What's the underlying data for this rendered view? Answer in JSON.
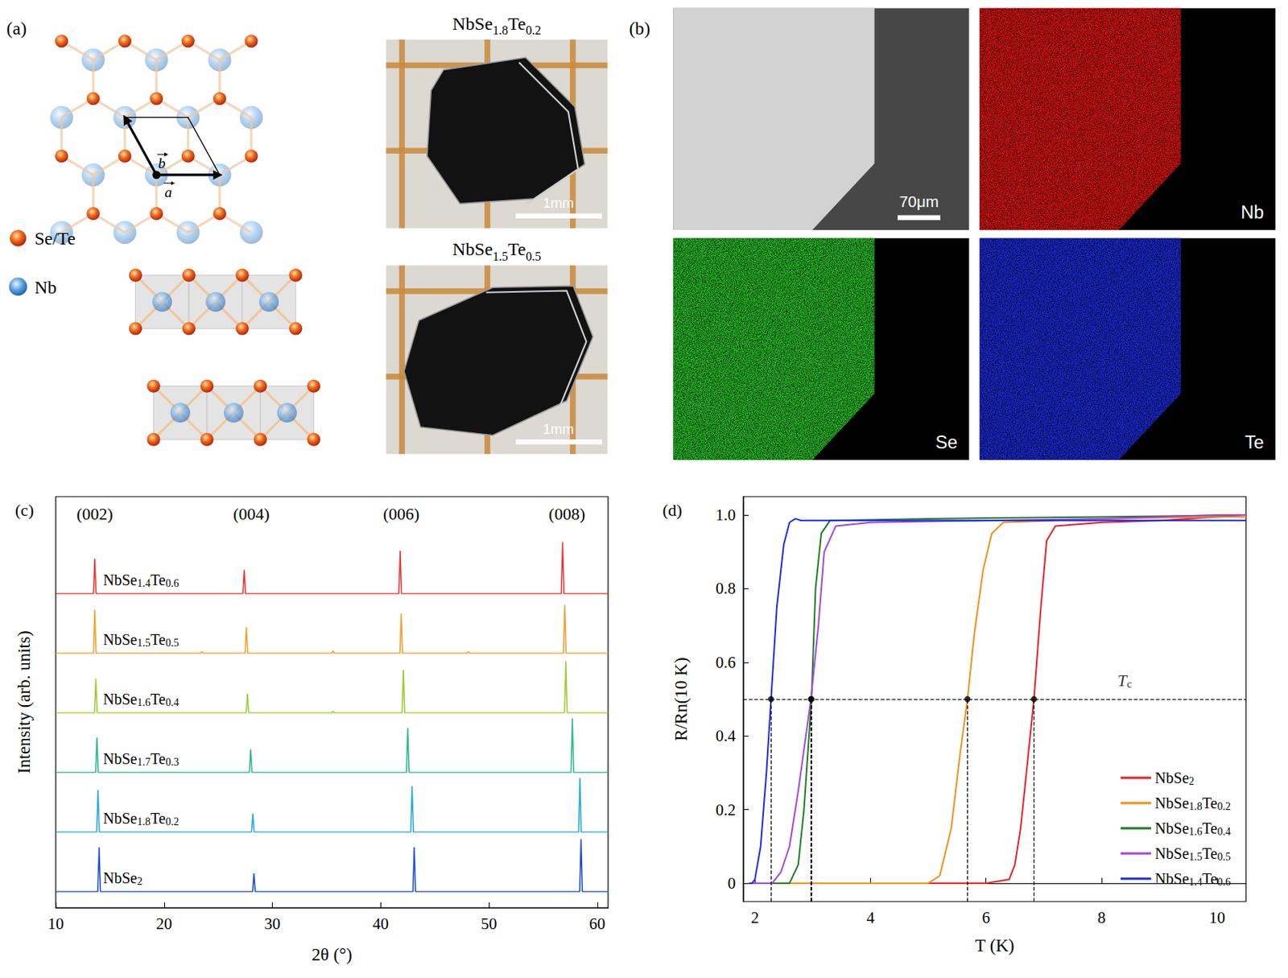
{
  "panels": {
    "a": {
      "label": "(a)",
      "atoms": [
        "Se/Te",
        "Nb"
      ],
      "vectors": [
        "a",
        "b"
      ],
      "photos": [
        {
          "title": "NbSe1.8Te0.2",
          "scale_bar": "1mm"
        },
        {
          "title": "NbSe1.5Te0.5",
          "scale_bar": "1mm"
        }
      ]
    },
    "b": {
      "label": "(b)",
      "scale_bar": "70μm",
      "maps": [
        "Nb",
        "Se",
        "Te"
      ]
    }
  },
  "chart_data": [
    {
      "label": "(c)",
      "type": "line",
      "x_label": "2θ (°)",
      "y_label": "Intensity (arb. units)",
      "xlim": [
        10,
        61
      ],
      "xticks": [
        10,
        20,
        30,
        40,
        50,
        60
      ],
      "ylim": [
        0,
        75
      ],
      "tick_labels": "x",
      "annotations": [
        {
          "text": "(002)",
          "x": 13.6
        },
        {
          "text": "(004)",
          "x": 28.06
        },
        {
          "text": "(006)",
          "x": 41.9
        },
        {
          "text": "(008)",
          "x": 57.2
        }
      ],
      "series": [
        {
          "name": "NbSe1.4Te0.6",
          "color": "#e53935",
          "x": [
            10,
            13.48,
            13.6,
            13.72,
            27.28,
            27.4,
            27.52,
            41.68,
            41.8,
            41.92,
            56.68,
            56.8,
            56.92,
            61
          ],
          "values": [
            0,
            0,
            44,
            0,
            0,
            30,
            0,
            0,
            54,
            0,
            0,
            65,
            0,
            0
          ]
        },
        {
          "name": "NbSe1.5Te0.5",
          "color": "#f0a030",
          "x": [
            10,
            13.48,
            13.6,
            13.72,
            23.38,
            23.5,
            23.62,
            27.48,
            27.6,
            27.72,
            35.48,
            35.6,
            35.72,
            41.78,
            41.9,
            42.02,
            47.98,
            48.1,
            48.22,
            56.88,
            57.0,
            57.12,
            61
          ],
          "values": [
            0,
            0,
            55,
            0,
            0,
            2,
            0,
            0,
            33,
            0,
            0,
            3,
            0,
            0,
            50,
            0,
            0,
            2,
            0,
            0,
            61,
            0,
            0
          ]
        },
        {
          "name": "NbSe1.6Te0.4",
          "color": "#9acd32",
          "x": [
            10,
            13.58,
            13.7,
            13.82,
            27.58,
            27.7,
            27.82,
            35.48,
            35.6,
            35.72,
            41.98,
            42.1,
            42.22,
            56.98,
            57.1,
            57.22,
            61
          ],
          "values": [
            0,
            0,
            43,
            0,
            0,
            24,
            0,
            0,
            2,
            0,
            0,
            54,
            0,
            0,
            65,
            0,
            0
          ]
        },
        {
          "name": "NbSe1.7Te0.3",
          "color": "#2db88c",
          "x": [
            10,
            13.68,
            13.8,
            13.92,
            27.88,
            28.0,
            28.12,
            42.38,
            42.5,
            42.62,
            57.58,
            57.7,
            57.82,
            61
          ],
          "values": [
            0,
            0,
            44,
            0,
            0,
            29,
            0,
            0,
            56,
            0,
            0,
            68,
            0,
            0
          ]
        },
        {
          "name": "NbSe1.8Te0.2",
          "color": "#29a8e0",
          "x": [
            10,
            13.78,
            13.9,
            14.02,
            28.08,
            28.2,
            28.32,
            42.78,
            42.9,
            43.02,
            58.28,
            58.4,
            58.52,
            61
          ],
          "values": [
            0,
            0,
            53,
            0,
            0,
            23,
            0,
            0,
            58,
            0,
            0,
            68,
            0,
            0
          ]
        },
        {
          "name": "NbSe2",
          "color": "#1f4fd0",
          "x": [
            10,
            13.88,
            14.0,
            14.12,
            28.18,
            28.3,
            28.42,
            42.98,
            43.1,
            43.22,
            58.38,
            58.5,
            58.62,
            61
          ],
          "values": [
            0,
            0,
            56,
            0,
            0,
            23,
            0,
            0,
            56,
            0,
            0,
            66,
            0,
            0
          ]
        }
      ]
    },
    {
      "label": "(d)",
      "type": "line",
      "x_label": "T (K)",
      "y_label": "R/Rn(10 K)",
      "xlim": [
        1.8,
        10.5
      ],
      "xticks": [
        2,
        4,
        6,
        8,
        10
      ],
      "ylim": [
        -0.05,
        1.05
      ],
      "yticks": [
        0,
        0.2,
        0.4,
        0.6,
        0.8,
        {
          "value": 1,
          "label": "1.0"
        }
      ],
      "legend": "lower right",
      "tc_level": 0.5,
      "annotations": [
        {
          "text": "Tc",
          "x": 8.4,
          "y": 0.55
        }
      ],
      "series": [
        {
          "name": "NbSe2",
          "color": "#e8202a",
          "tc": 6.83,
          "x": [
            1.9,
            3,
            4,
            5,
            6,
            6.4,
            6.5,
            6.6,
            6.7,
            6.83,
            6.95,
            7.05,
            7.2,
            8,
            9,
            10,
            10.5
          ],
          "values": [
            0,
            0,
            0,
            0,
            0,
            0.01,
            0.05,
            0.15,
            0.3,
            0.5,
            0.75,
            0.93,
            0.97,
            0.98,
            0.985,
            0.995,
            1.0
          ]
        },
        {
          "name": "NbSe1.8Te0.2",
          "color": "#f39019",
          "tc": 5.68,
          "x": [
            1.9,
            3,
            4,
            5.0,
            5.2,
            5.4,
            5.55,
            5.68,
            5.8,
            5.95,
            6.1,
            6.3,
            8,
            10,
            10.5
          ],
          "values": [
            0,
            0,
            0,
            0,
            0.02,
            0.15,
            0.35,
            0.5,
            0.68,
            0.85,
            0.95,
            0.98,
            0.99,
            0.995,
            0.995
          ]
        },
        {
          "name": "NbSe1.6Te0.4",
          "color": "#1e7d1e",
          "tc": 2.98,
          "x": [
            1.9,
            2.6,
            2.75,
            2.85,
            2.98,
            3.05,
            3.15,
            3.3,
            5,
            8,
            10.5
          ],
          "values": [
            0,
            0,
            0.05,
            0.2,
            0.5,
            0.8,
            0.95,
            0.985,
            0.99,
            0.995,
            1.0
          ]
        },
        {
          "name": "NbSe1.5Te0.5",
          "color": "#a347e0",
          "tc": 2.97,
          "x": [
            1.9,
            2.3,
            2.45,
            2.6,
            2.75,
            2.9,
            2.97,
            3.1,
            3.2,
            3.4,
            4,
            6,
            8,
            10,
            10.5
          ],
          "values": [
            0,
            0,
            0.03,
            0.1,
            0.25,
            0.42,
            0.5,
            0.7,
            0.9,
            0.97,
            0.98,
            0.985,
            0.99,
            1.0,
            1.0
          ]
        },
        {
          "name": "NbSe1.4Te0.6",
          "color": "#1c2be0",
          "tc": 2.28,
          "x": [
            1.9,
            1.95,
            2.0,
            2.1,
            2.2,
            2.28,
            2.38,
            2.5,
            2.6,
            2.7,
            2.8,
            3,
            10.5
          ],
          "values": [
            0,
            0,
            0.01,
            0.1,
            0.3,
            0.5,
            0.75,
            0.92,
            0.98,
            0.99,
            0.985,
            0.985,
            0.985
          ]
        }
      ]
    }
  ]
}
